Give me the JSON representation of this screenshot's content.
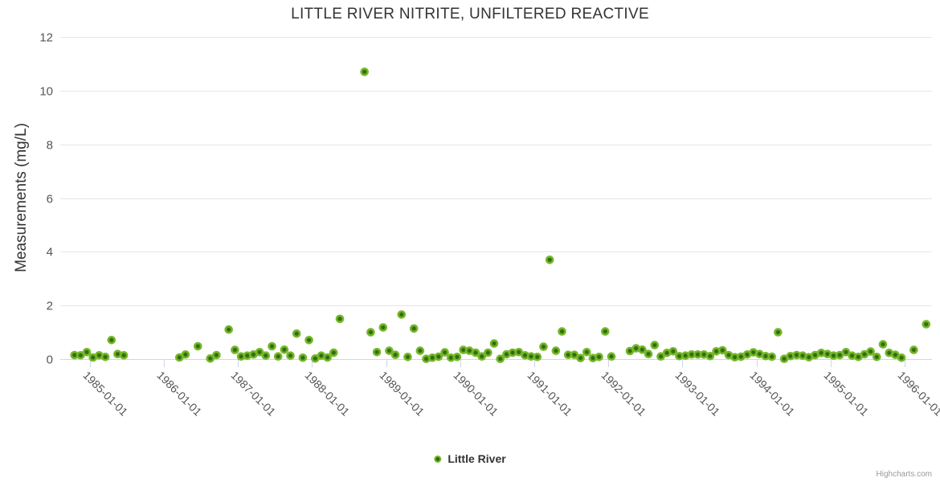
{
  "credits": "Highcharts.com",
  "colors": {
    "grid_line": "#e6e6e6",
    "axis_line": "#ccd6eb",
    "tick_mark": "#ccd6eb",
    "tick_label": "#555555",
    "title_text": "#333333",
    "marker_outer": "#76b829",
    "marker_center": "#306c0f"
  },
  "chart_data": {
    "type": "scatter",
    "title": "LITTLE RIVER NITRITE, UNFILTERED REACTIVE",
    "xlabel": "",
    "ylabel": "Measurements (mg/L)",
    "ylim": [
      0,
      12
    ],
    "y_ticks": [
      0,
      2,
      4,
      6,
      8,
      10,
      12
    ],
    "x_tick_labels": [
      "1985-01-01",
      "1986-01-01",
      "1987-01-01",
      "1988-01-01",
      "1989-01-01",
      "1990-01-01",
      "1991-01-01",
      "1992-01-01",
      "1993-01-01",
      "1994-01-01",
      "1995-01-01",
      "1996-01-01"
    ],
    "xlim_decimal_years": [
      1984.6,
      1996.37
    ],
    "grid": "horizontal",
    "legend_position": "bottom-center",
    "series": [
      {
        "name": "Little River",
        "marker_color": "#76b829",
        "marker_center_color": "#306c0f",
        "points": [
          [
            "1984-10",
            0.15
          ],
          [
            "1984-11",
            0.14
          ],
          [
            "1984-12",
            0.26
          ],
          [
            "1985-01",
            0.06
          ],
          [
            "1985-02",
            0.14
          ],
          [
            "1985-03",
            0.08
          ],
          [
            "1985-04",
            0.71
          ],
          [
            "1985-05",
            0.19
          ],
          [
            "1985-06",
            0.14
          ],
          [
            "1986-03",
            0.06
          ],
          [
            "1986-04",
            0.17
          ],
          [
            "1986-06",
            0.48
          ],
          [
            "1986-08",
            0.02
          ],
          [
            "1986-09",
            0.15
          ],
          [
            "1986-11",
            1.1
          ],
          [
            "1986-12",
            0.34
          ],
          [
            "1987-01",
            0.1
          ],
          [
            "1987-02",
            0.13
          ],
          [
            "1987-03",
            0.17
          ],
          [
            "1987-04",
            0.26
          ],
          [
            "1987-05",
            0.13
          ],
          [
            "1987-06",
            0.48
          ],
          [
            "1987-07",
            0.1
          ],
          [
            "1987-08",
            0.35
          ],
          [
            "1987-09",
            0.13
          ],
          [
            "1987-10",
            0.95
          ],
          [
            "1987-11",
            0.05
          ],
          [
            "1987-12",
            0.71
          ],
          [
            "1988-01",
            0.02
          ],
          [
            "1988-02",
            0.13
          ],
          [
            "1988-03",
            0.06
          ],
          [
            "1988-04",
            0.24
          ],
          [
            "1988-05",
            1.5
          ],
          [
            "1988-09",
            10.7
          ],
          [
            "1988-10",
            1.0
          ],
          [
            "1988-11",
            0.26
          ],
          [
            "1988-12",
            1.18
          ],
          [
            "1989-01",
            0.31
          ],
          [
            "1989-02",
            0.16
          ],
          [
            "1989-03",
            1.66
          ],
          [
            "1989-04",
            0.08
          ],
          [
            "1989-05",
            1.14
          ],
          [
            "1989-06",
            0.31
          ],
          [
            "1989-07",
            0.01
          ],
          [
            "1989-08",
            0.05
          ],
          [
            "1989-09",
            0.09
          ],
          [
            "1989-10",
            0.25
          ],
          [
            "1989-11",
            0.05
          ],
          [
            "1989-12",
            0.08
          ],
          [
            "1990-01",
            0.34
          ],
          [
            "1990-02",
            0.31
          ],
          [
            "1990-03",
            0.24
          ],
          [
            "1990-04",
            0.1
          ],
          [
            "1990-05",
            0.24
          ],
          [
            "1990-06",
            0.58
          ],
          [
            "1990-07",
            0.01
          ],
          [
            "1990-08",
            0.18
          ],
          [
            "1990-09",
            0.24
          ],
          [
            "1990-10",
            0.26
          ],
          [
            "1990-11",
            0.14
          ],
          [
            "1990-12",
            0.1
          ],
          [
            "1991-01",
            0.08
          ],
          [
            "1991-02",
            0.46
          ],
          [
            "1991-03",
            3.7
          ],
          [
            "1991-04",
            0.31
          ],
          [
            "1991-05",
            1.03
          ],
          [
            "1991-06",
            0.16
          ],
          [
            "1991-07",
            0.16
          ],
          [
            "1991-08",
            0.04
          ],
          [
            "1991-09",
            0.26
          ],
          [
            "1991-10",
            0.04
          ],
          [
            "1991-11",
            0.08
          ],
          [
            "1991-12",
            1.03
          ],
          [
            "1992-01",
            0.1
          ],
          [
            "1992-04",
            0.3
          ],
          [
            "1992-05",
            0.4
          ],
          [
            "1992-06",
            0.35
          ],
          [
            "1992-07",
            0.19
          ],
          [
            "1992-08",
            0.52
          ],
          [
            "1992-09",
            0.1
          ],
          [
            "1992-10",
            0.23
          ],
          [
            "1992-11",
            0.29
          ],
          [
            "1992-12",
            0.11
          ],
          [
            "1993-01",
            0.13
          ],
          [
            "1993-02",
            0.17
          ],
          [
            "1993-03",
            0.17
          ],
          [
            "1993-04",
            0.17
          ],
          [
            "1993-05",
            0.11
          ],
          [
            "1993-06",
            0.29
          ],
          [
            "1993-07",
            0.33
          ],
          [
            "1993-08",
            0.15
          ],
          [
            "1993-09",
            0.07
          ],
          [
            "1993-10",
            0.09
          ],
          [
            "1993-11",
            0.17
          ],
          [
            "1993-12",
            0.25
          ],
          [
            "1994-01",
            0.19
          ],
          [
            "1994-02",
            0.11
          ],
          [
            "1994-03",
            0.09
          ],
          [
            "1994-04",
            1.0
          ],
          [
            "1994-05",
            0.01
          ],
          [
            "1994-06",
            0.11
          ],
          [
            "1994-07",
            0.15
          ],
          [
            "1994-08",
            0.13
          ],
          [
            "1994-09",
            0.07
          ],
          [
            "1994-10",
            0.15
          ],
          [
            "1994-11",
            0.23
          ],
          [
            "1994-12",
            0.19
          ],
          [
            "1995-01",
            0.13
          ],
          [
            "1995-02",
            0.15
          ],
          [
            "1995-03",
            0.26
          ],
          [
            "1995-04",
            0.13
          ],
          [
            "1995-05",
            0.08
          ],
          [
            "1995-06",
            0.18
          ],
          [
            "1995-07",
            0.28
          ],
          [
            "1995-08",
            0.08
          ],
          [
            "1995-09",
            0.55
          ],
          [
            "1995-10",
            0.23
          ],
          [
            "1995-11",
            0.16
          ],
          [
            "1995-12",
            0.05
          ],
          [
            "1996-02",
            0.34
          ],
          [
            "1996-04",
            1.3
          ]
        ]
      }
    ]
  }
}
